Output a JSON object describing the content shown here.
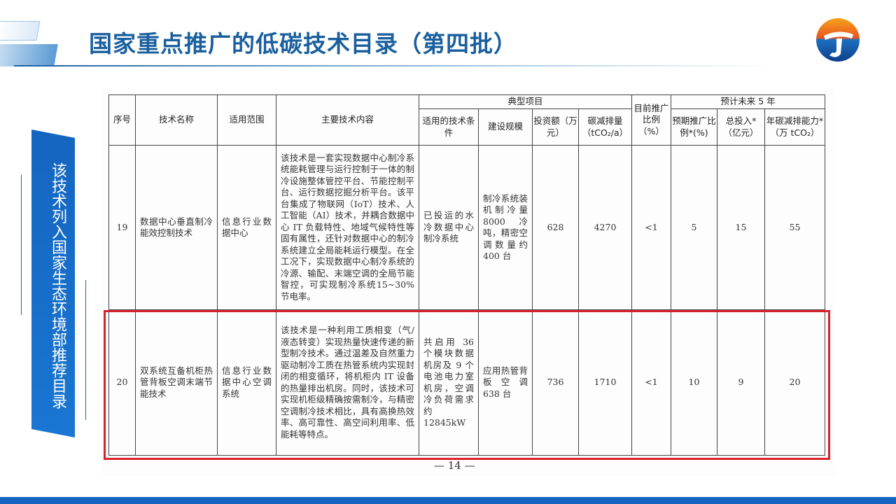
{
  "header": {
    "title": "国家重点推广的低碳技术目录（第四批）"
  },
  "side_banner": {
    "text": "该技术列入国家生态环境部推荐目录"
  },
  "colors": {
    "brand_blue": "#1a5f9e",
    "highlight_red": "#d9222b"
  },
  "table": {
    "headers": {
      "no": "序号",
      "name": "技术名称",
      "scope": "适用范围",
      "content": "主要技术内容",
      "typical": "典型项目",
      "conditions": "适用的技术条件",
      "scale": "建设规模",
      "investment": "投资额（万元）",
      "reduction": "碳减排量（tCO₂/a）",
      "current_ratio": "目前推广比例（%）",
      "forecast": "预计未来 5 年",
      "expected_ratio": "预期推广比例*(%)",
      "total_investment": "总投入*（亿元）",
      "annual_reduction": "年碳减排能力*（万 tCO₂）"
    },
    "rows": [
      {
        "no": "19",
        "name": "数据中心垂直制冷能效控制技术",
        "scope": "信息行业数据中心",
        "content": "该技术是一套实现数据中心制冷系统能耗管理与运行控制于一体的制冷设施整体管控平台、节能控制平台、运行数据挖掘分析平台。该平台集成了物联网（IoT）技术、人工智能（AI）技术，并耦合数据中心 IT 负载特性、地域气候特性等固有属性，还针对数据中心的制冷系统建立全局能耗运行模型。在全工况下，实现数据中心制冷系统的冷源、输配、末端空调的全局节能智控，可实现制冷系统15~30%节电率。",
        "conditions": "已投运的水冷数据中心制冷系统",
        "scale": "制冷系统装机制冷量 8000 冷吨，精密空调数量约 400 台",
        "investment": "628",
        "reduction": "4270",
        "current_ratio": "<1",
        "expected_ratio": "5",
        "total_investment": "15",
        "annual_reduction": "55"
      },
      {
        "no": "20",
        "name": "双系统互备机柜热管背板空调末端节能技术",
        "scope": "信息行业数据中心空调系统",
        "content": "该技术是一种利用工质相变（气/液态转变）实现热量快速传递的新型制冷技术。通过温差及自然重力驱动制冷工质在热管系统内实现封闭的相变循环，将机柜内 IT 设备的热量排出机房。同时，该技术可实现机柜级精确按需制冷，与精密空调制冷技术相比，具有高换热效率、高可靠性、高空间利用率、低能耗等特点。",
        "conditions": "共启用 36 个模块数据机房及 9 个电池电力室机房，空调冷负荷需求约 12845kW",
        "scale": "应用热管背板空调 638 台",
        "investment": "736",
        "reduction": "1710",
        "current_ratio": "<1",
        "expected_ratio": "10",
        "total_investment": "9",
        "annual_reduction": "20"
      }
    ]
  },
  "page_number": "— 14 —"
}
